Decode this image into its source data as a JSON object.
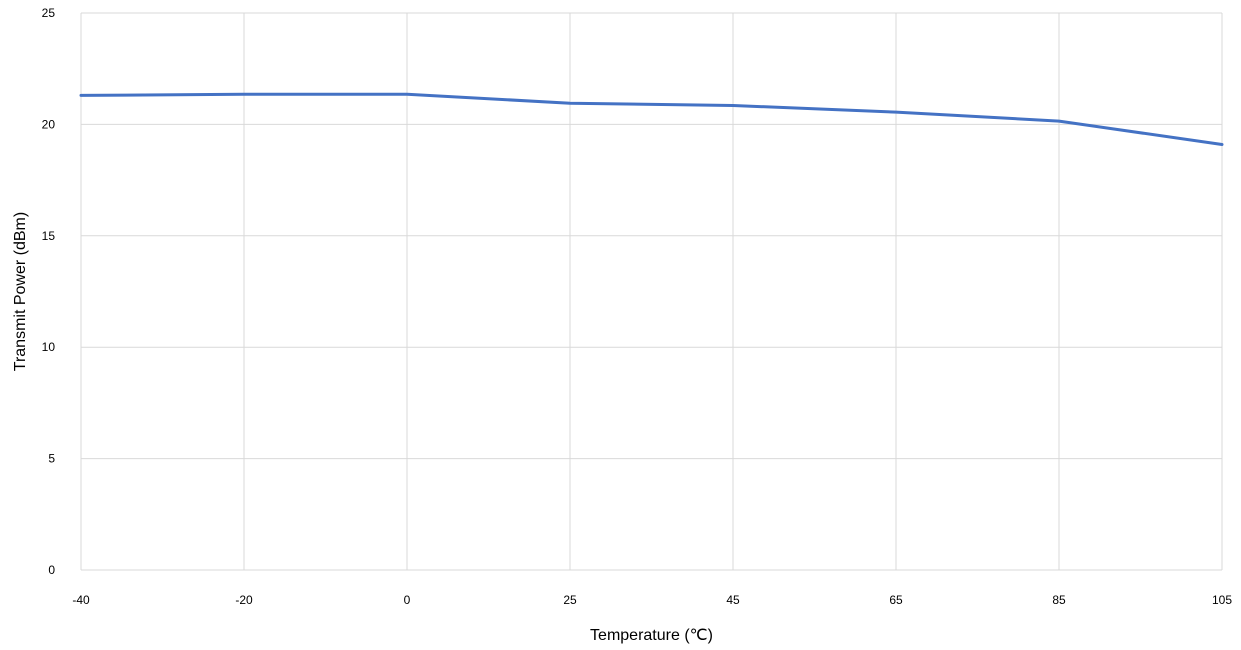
{
  "chart_data": {
    "type": "line",
    "categories": [
      "-40",
      "-20",
      "0",
      "25",
      "45",
      "65",
      "85",
      "105"
    ],
    "series": [
      {
        "values": [
          21.3,
          21.35,
          21.35,
          20.95,
          20.85,
          20.55,
          20.15,
          19.1
        ],
        "color": "#4472c4"
      }
    ],
    "xlabel": "Temperature (℃)",
    "ylabel": "Transmit Power (dBm)",
    "ylim": [
      0,
      25
    ],
    "yticks": [
      "0",
      "5",
      "10",
      "15",
      "20",
      "25"
    ],
    "grid": true,
    "legend": "none"
  }
}
